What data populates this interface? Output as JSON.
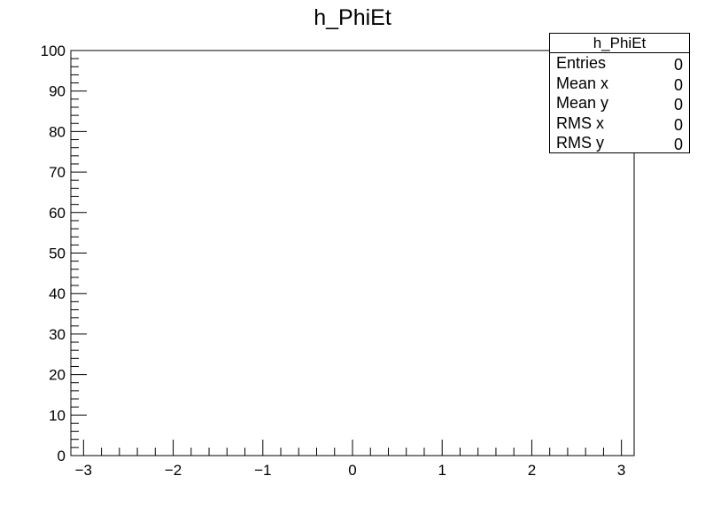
{
  "chart_data": {
    "type": "histogram",
    "title": "h_PhiEt",
    "xlabel": "",
    "ylabel": "",
    "xlim": [
      -3.1416,
      3.1416
    ],
    "ylim": [
      0,
      100
    ],
    "x_ticks": [
      -3,
      -2,
      -1,
      0,
      1,
      2,
      3
    ],
    "x_tick_labels": [
      "−3",
      "−2",
      "−1",
      "0",
      "1",
      "2",
      "3"
    ],
    "y_ticks": [
      0,
      10,
      20,
      30,
      40,
      50,
      60,
      70,
      80,
      90,
      100
    ],
    "y_tick_labels": [
      "0",
      "10",
      "20",
      "30",
      "40",
      "50",
      "60",
      "70",
      "80",
      "90",
      "100"
    ],
    "series": [
      {
        "values": []
      }
    ],
    "grid": false,
    "stats_box": {
      "title": "h_PhiEt",
      "rows": [
        {
          "label": "Entries",
          "value": "0"
        },
        {
          "label": "Mean x",
          "value": "0"
        },
        {
          "label": "Mean y",
          "value": "0"
        },
        {
          "label": "RMS x",
          "value": "0"
        },
        {
          "label": "RMS y",
          "value": "0"
        }
      ]
    }
  }
}
